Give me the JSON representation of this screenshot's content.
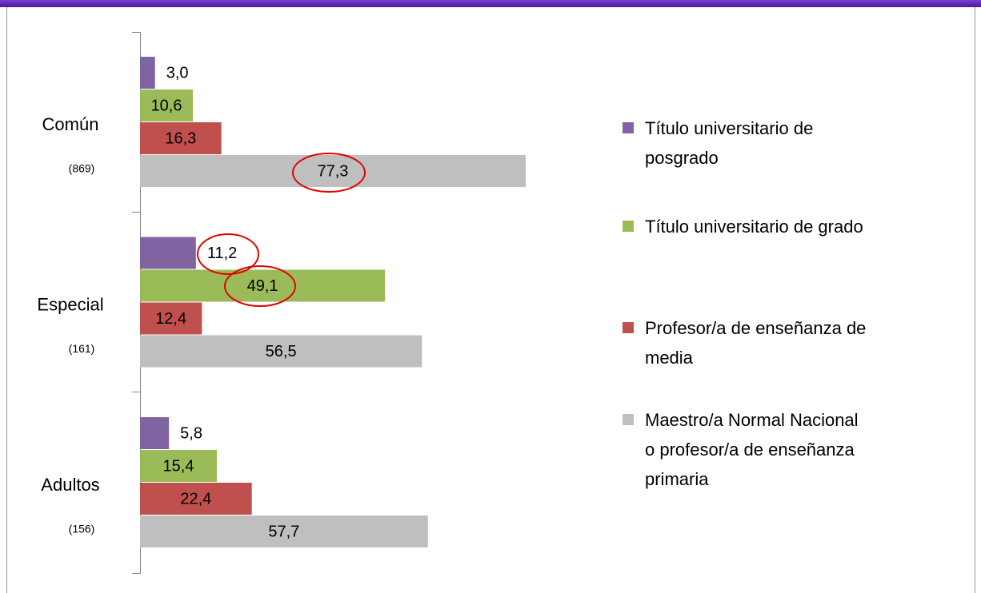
{
  "chart_data": {
    "type": "bar",
    "orientation": "horizontal",
    "categories": [
      "Común",
      "Especial",
      "Adultos"
    ],
    "category_notes": [
      "(869)",
      "(161)",
      "(156)"
    ],
    "xlim": [
      0,
      100
    ],
    "series": [
      {
        "name": "Título universitario de posgrado",
        "color": "#8064a2",
        "values": [
          3.0,
          11.2,
          5.8
        ],
        "value_labels": [
          "3,0",
          "11,2",
          "5,8"
        ]
      },
      {
        "name": "Título universitario de grado",
        "color": "#9bbb59",
        "values": [
          10.6,
          49.1,
          15.4
        ],
        "value_labels": [
          "10,6",
          "49,1",
          "15,4"
        ]
      },
      {
        "name": "Profesor/a de enseñanza de media",
        "color": "#c0504d",
        "values": [
          16.3,
          12.4,
          22.4
        ],
        "value_labels": [
          "16,3",
          "12,4",
          "22,4"
        ]
      },
      {
        "name": "Maestro/a Normal Nacional o profesor/a de enseñanza primaria",
        "color": "#bfbfbf",
        "values": [
          77.3,
          56.5,
          57.7
        ],
        "value_labels": [
          "77,3",
          "56,5",
          "57,7"
        ]
      }
    ],
    "legend": "right"
  }
}
